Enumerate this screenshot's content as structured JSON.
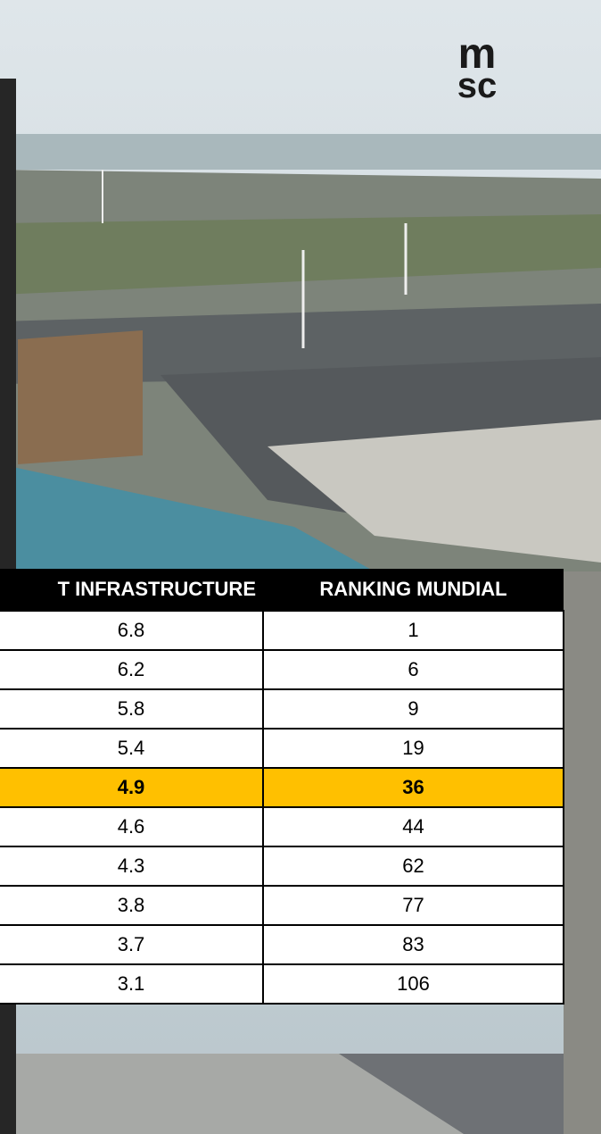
{
  "logo": {
    "top": "m",
    "bottom": "sc"
  },
  "table": {
    "headers": [
      "T INFRASTRUCTURE",
      "RANKING MUNDIAL"
    ],
    "rows": [
      [
        "6.8",
        "1"
      ],
      [
        "6.2",
        "6"
      ],
      [
        "5.8",
        "9"
      ],
      [
        "5.4",
        "19"
      ],
      [
        "4.9",
        "36"
      ],
      [
        "4.6",
        "44"
      ],
      [
        "4.3",
        "62"
      ],
      [
        "3.8",
        "77"
      ],
      [
        "3.7",
        "83"
      ],
      [
        "3.1",
        "106"
      ]
    ]
  }
}
